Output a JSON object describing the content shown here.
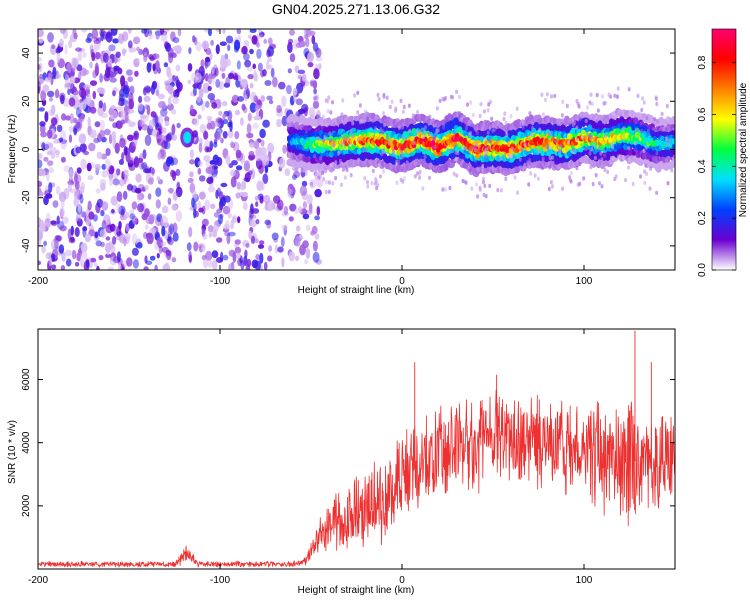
{
  "title": "GN04.2025.271.13.06.G32",
  "chart_data": [
    {
      "type": "heatmap",
      "xlabel": "Height of straight line (km)",
      "ylabel": "Frequency (Hz)",
      "xlim": [
        -200,
        150
      ],
      "ylim": [
        -50,
        50
      ],
      "xticks": [
        -200,
        -100,
        0,
        100
      ],
      "yticks": [
        -40,
        -20,
        0,
        20,
        40
      ],
      "colorbar": {
        "label": "Normalized spectral amplitude",
        "range": [
          0,
          0.93
        ],
        "ticks": [
          "0.0",
          "0.2",
          "0.4",
          "0.6",
          "0.8"
        ],
        "tick_values": [
          0.0,
          0.2,
          0.4,
          0.6,
          0.8
        ],
        "colormap": [
          "#ffffff",
          "#6a00d0",
          "#0040ff",
          "#00e0ff",
          "#00ff40",
          "#ffff00",
          "#ff8000",
          "#ff0000",
          "#ff0070"
        ]
      },
      "noise_band": {
        "x_from": -200,
        "x_to": -45,
        "amplitude_range": [
          0.0,
          0.2
        ]
      },
      "gap_km": [
        -122,
        -117
      ],
      "blip": {
        "x": -118,
        "freq": 5,
        "amplitude": 0.35
      },
      "ridge": {
        "height_km": [
          -62,
          -50,
          -40,
          -30,
          -20,
          -10,
          0,
          10,
          20,
          30,
          40,
          50,
          60,
          70,
          80,
          90,
          100,
          110,
          120,
          130,
          140,
          150
        ],
        "freq_hz": [
          4,
          2,
          2,
          3,
          4,
          3,
          1,
          4,
          1,
          5,
          0,
          1,
          0,
          3,
          3,
          2,
          5,
          3,
          6,
          5,
          2,
          3
        ],
        "peak_amplitude": [
          0.25,
          0.45,
          0.6,
          0.7,
          0.75,
          0.8,
          0.8,
          0.85,
          0.85,
          0.85,
          0.8,
          0.8,
          0.8,
          0.8,
          0.75,
          0.75,
          0.7,
          0.65,
          0.6,
          0.5,
          0.4,
          0.35
        ]
      }
    },
    {
      "type": "line",
      "xlabel": "Height of straight line (km)",
      "ylabel": "SNR (10 * v/v)",
      "xlim": [
        -200,
        150
      ],
      "ylim": [
        0,
        7600
      ],
      "xticks": [
        -200,
        -100,
        0,
        100
      ],
      "yticks": [
        2000,
        4000,
        6000
      ],
      "color": "#ee3030",
      "envelope": {
        "x": [
          -200,
          -125,
          -118,
          -112,
          -55,
          -40,
          -25,
          -10,
          0,
          15,
          30,
          50,
          75,
          100,
          125,
          150
        ],
        "center": [
          150,
          150,
          500,
          150,
          170,
          1400,
          1800,
          2200,
          2900,
          3500,
          3800,
          4200,
          4000,
          3600,
          3400,
          3500
        ],
        "spread": [
          90,
          90,
          300,
          90,
          100,
          900,
          1100,
          1300,
          1500,
          1400,
          1500,
          1500,
          1450,
          1600,
          1800,
          1700
        ]
      },
      "peaks": [
        {
          "x": 7,
          "y": 6550
        },
        {
          "x": 52,
          "y": 6150
        },
        {
          "x": 128,
          "y": 7550
        },
        {
          "x": 137,
          "y": 6550
        }
      ]
    }
  ]
}
